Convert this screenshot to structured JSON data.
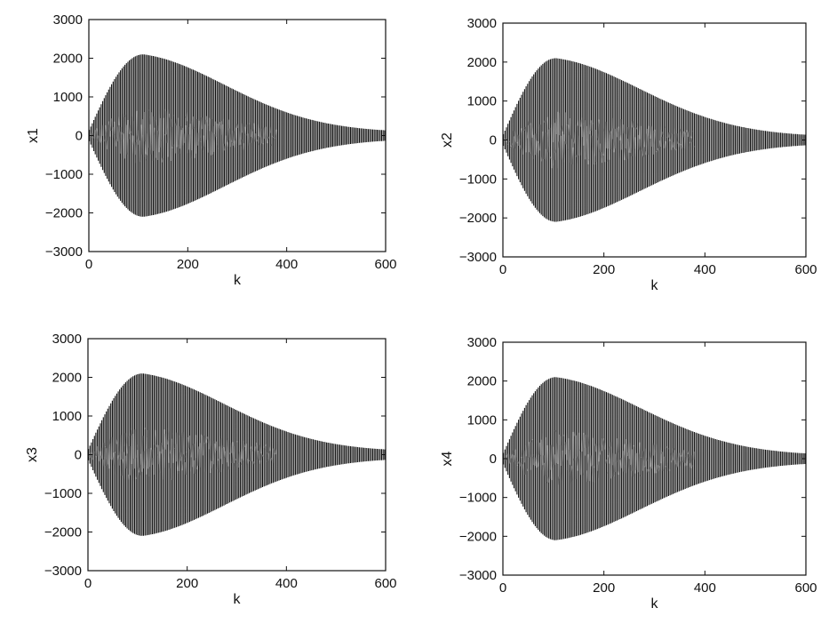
{
  "chart_data": [
    {
      "type": "line",
      "ylabel": "x1",
      "xlabel": "k",
      "xlim": [
        0,
        600
      ],
      "ylim": [
        -3000,
        3000
      ],
      "xticks": [
        "0",
        "200",
        "400",
        "600"
      ],
      "yticks": [
        "3000",
        "2000",
        "1000",
        "0",
        "−1000",
        "−2000",
        "−3000"
      ],
      "grid": false,
      "series": [
        {
          "envelope_peak_k": 110,
          "envelope_peak_amplitude": 2100,
          "amplitude_at_k_600": 80,
          "color": "#111111"
        }
      ]
    },
    {
      "type": "line",
      "ylabel": "x2",
      "xlabel": "k",
      "xlim": [
        0,
        600
      ],
      "ylim": [
        -3000,
        3000
      ],
      "xticks": [
        "0",
        "200",
        "400",
        "600"
      ],
      "yticks": [
        "3000",
        "2000",
        "1000",
        "0",
        "−1000",
        "−2000",
        "−3000"
      ],
      "grid": false,
      "series": [
        {
          "envelope_peak_k": 105,
          "envelope_peak_amplitude": 2100,
          "amplitude_at_k_600": 80,
          "color": "#111111"
        }
      ]
    },
    {
      "type": "line",
      "ylabel": "x3",
      "xlabel": "k",
      "xlim": [
        0,
        600
      ],
      "ylim": [
        -3000,
        3000
      ],
      "xticks": [
        "0",
        "200",
        "400",
        "600"
      ],
      "yticks": [
        "3000",
        "2000",
        "1000",
        "0",
        "−1000",
        "−2000",
        "−3000"
      ],
      "grid": false,
      "series": [
        {
          "envelope_peak_k": 110,
          "envelope_peak_amplitude": 2100,
          "amplitude_at_k_600": 80,
          "color": "#111111"
        }
      ]
    },
    {
      "type": "line",
      "ylabel": "x4",
      "xlabel": "k",
      "xlim": [
        0,
        600
      ],
      "ylim": [
        -3000,
        3000
      ],
      "xticks": [
        "0",
        "200",
        "400",
        "600"
      ],
      "yticks": [
        "3000",
        "2000",
        "1000",
        "0",
        "−1000",
        "−2000",
        "−3000"
      ],
      "grid": false,
      "series": [
        {
          "envelope_peak_k": 105,
          "envelope_peak_amplitude": 2100,
          "amplitude_at_k_600": 80,
          "color": "#111111"
        }
      ]
    }
  ]
}
